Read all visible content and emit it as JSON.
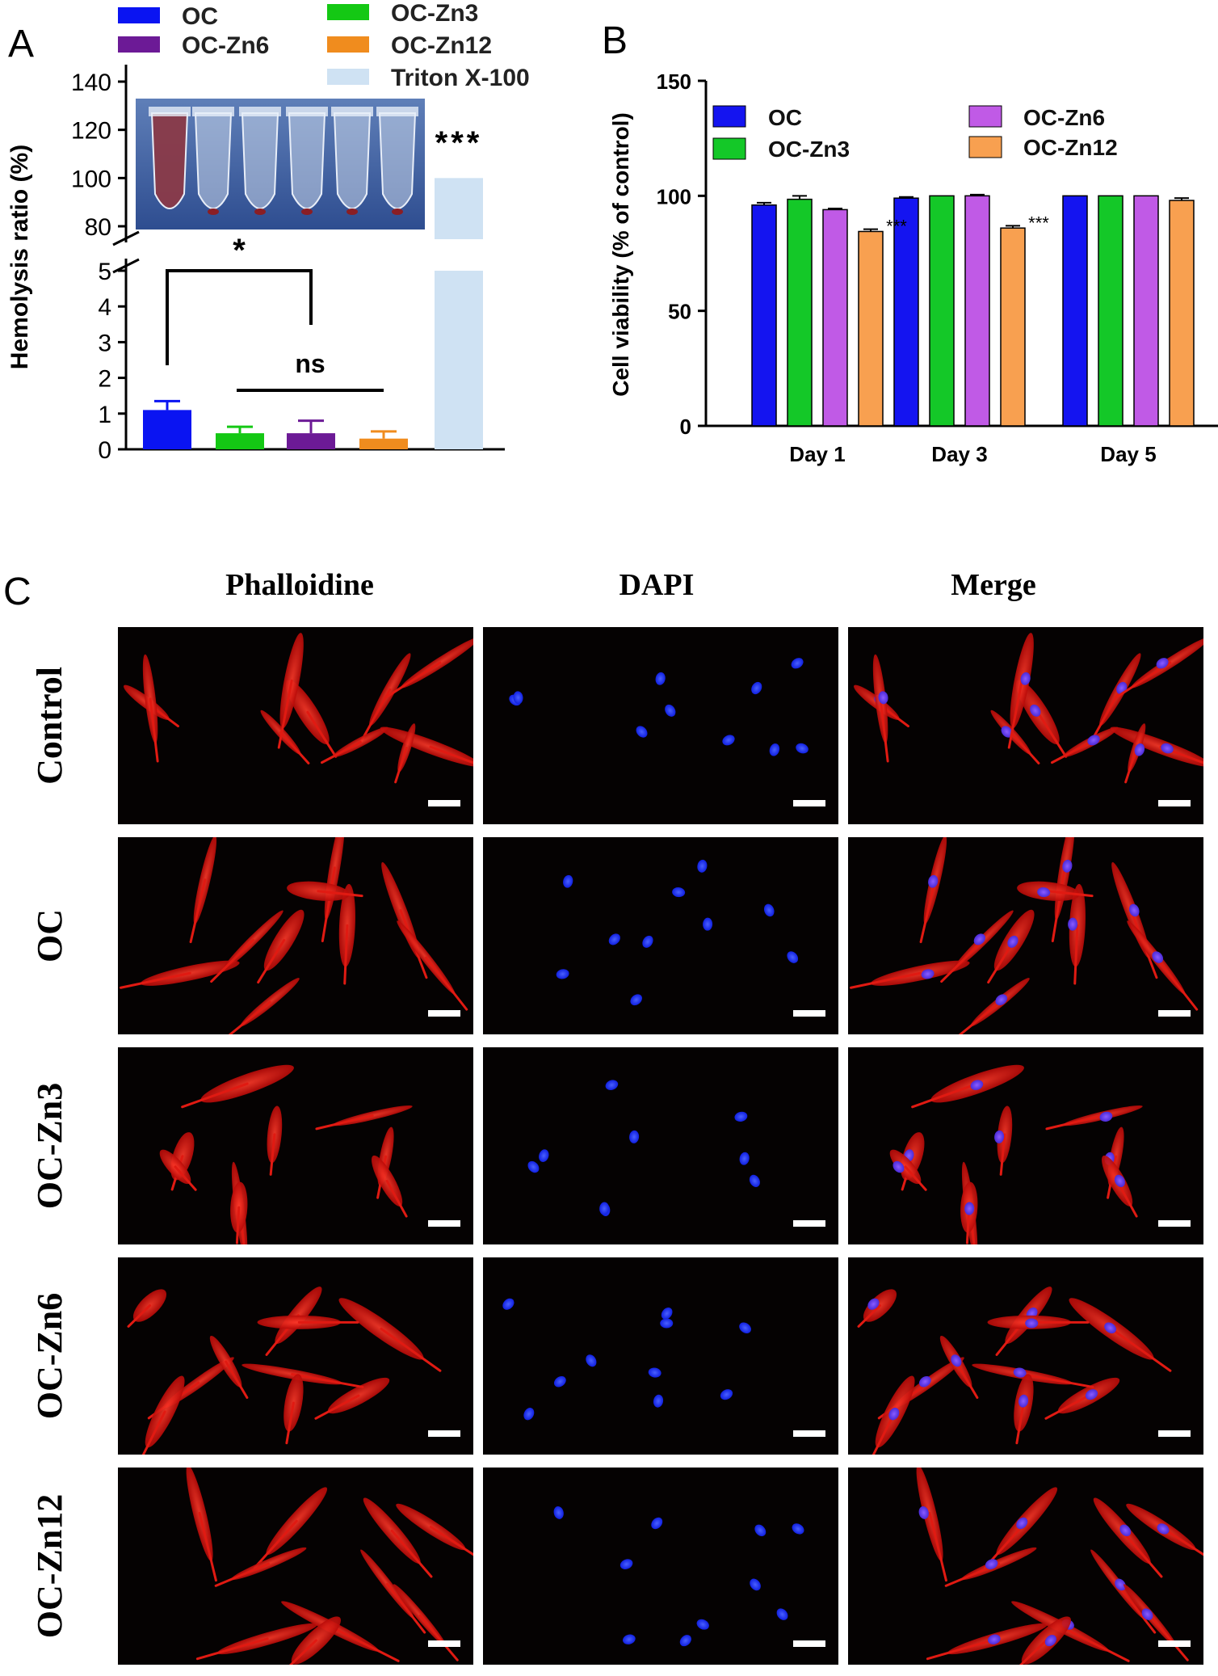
{
  "panels": {
    "a": "A",
    "b": "B",
    "c": "C"
  },
  "chart_data": [
    {
      "panel": "A",
      "type": "bar",
      "ylabel": "Hemolysis ratio (%)",
      "axis_break": {
        "lower_range": [
          0,
          5
        ],
        "upper_range": [
          80,
          140
        ]
      },
      "ylim": [
        0,
        140
      ],
      "categories": [
        "OC",
        "OC-Zn3",
        "OC-Zn6",
        "OC-Zn12",
        "Triton X-100"
      ],
      "values": [
        1.1,
        0.45,
        0.45,
        0.3,
        100
      ],
      "errors": [
        0.25,
        0.18,
        0.35,
        0.2,
        0
      ],
      "colors": [
        "#0a14f2",
        "#14c814",
        "#6c1a96",
        "#f08c1e",
        "#cfe2f3"
      ],
      "legend": [
        "OC",
        "OC-Zn6",
        "OC-Zn3",
        "OC-Zn12",
        "Triton X-100"
      ],
      "legend_colors": [
        "#0a14f2",
        "#6c1a96",
        "#14c814",
        "#f08c1e",
        "#cfe2f3"
      ],
      "y_ticks_lower": [
        "0",
        "1",
        "2",
        "3",
        "4",
        "5"
      ],
      "y_ticks_upper": [
        "80",
        "100",
        "120",
        "140"
      ],
      "annotations": {
        "star1": "*",
        "ns": "ns",
        "triple": "***"
      }
    },
    {
      "panel": "B",
      "type": "bar",
      "ylabel": "Cell viability (% of control)",
      "ylim": [
        0,
        150
      ],
      "y_ticks": [
        "0",
        "50",
        "100",
        "150"
      ],
      "categories": [
        "Day 1",
        "Day 3",
        "Day 5"
      ],
      "series": [
        {
          "name": "OC",
          "color": "#1414f0",
          "values": [
            96,
            99,
            100
          ],
          "errors": [
            1,
            0.5,
            0
          ]
        },
        {
          "name": "OC-Zn3",
          "color": "#14c828",
          "values": [
            98.5,
            100,
            100
          ],
          "errors": [
            1.5,
            0,
            0
          ]
        },
        {
          "name": "OC-Zn6",
          "color": "#c05ae6",
          "values": [
            94,
            100,
            100
          ],
          "errors": [
            0.5,
            0.5,
            0
          ]
        },
        {
          "name": "OC-Zn12",
          "color": "#f8a050",
          "values": [
            84.5,
            86,
            98
          ],
          "errors": [
            1,
            1,
            1
          ]
        }
      ],
      "annotations": [
        "***",
        "***"
      ]
    }
  ],
  "panel_c": {
    "columns": [
      "Phalloidine",
      "DAPI",
      "Merge"
    ],
    "rows": [
      "Control",
      "OC",
      "OC-Zn3",
      "OC-Zn6",
      "OC-Zn12"
    ]
  }
}
